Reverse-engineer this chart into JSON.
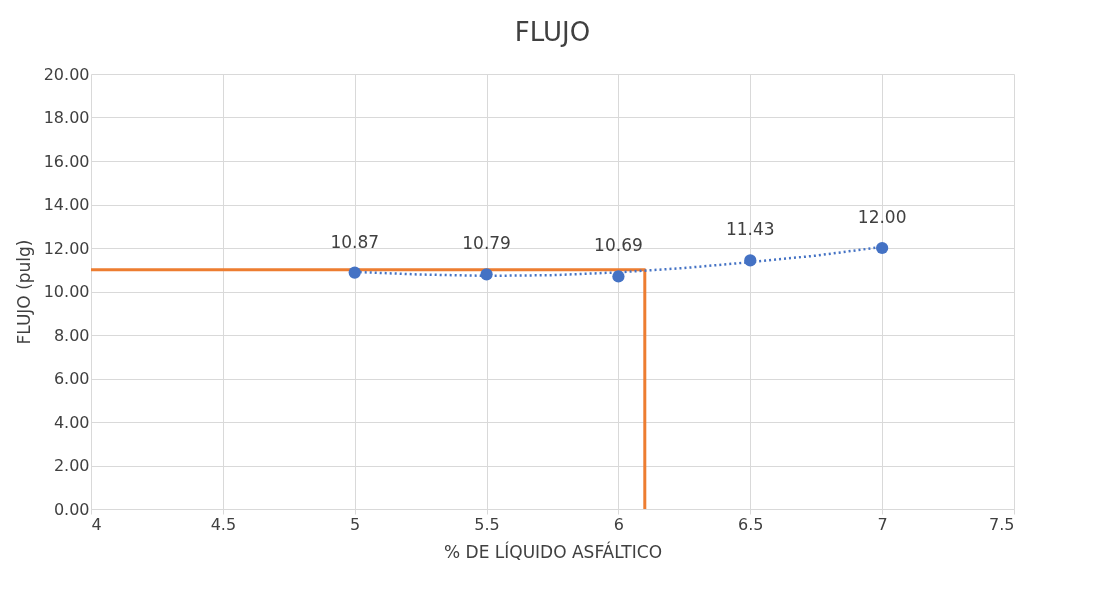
{
  "chart_data": {
    "type": "scatter",
    "title": "FLUJO",
    "xlabel": "% DE LÍQUIDO ASFÁLTICO",
    "ylabel": "FLUJO (pulg)",
    "xlim": [
      4,
      7.5
    ],
    "xticks": [
      4,
      4.5,
      5,
      5.5,
      6,
      6.5,
      7,
      7.5
    ],
    "ylim": [
      0,
      20
    ],
    "yticks": [
      {
        "value": 0,
        "label": "0.00"
      },
      {
        "value": 2,
        "label": "2.00"
      },
      {
        "value": 4,
        "label": "4.00"
      },
      {
        "value": 6,
        "label": "6.00"
      },
      {
        "value": 8,
        "label": "8.00"
      },
      {
        "value": 10,
        "label": "10.00"
      },
      {
        "value": 12,
        "label": "12.00"
      },
      {
        "value": 14,
        "label": "14.00"
      },
      {
        "value": 16,
        "label": "16.00"
      },
      {
        "value": 18,
        "label": "18.00"
      },
      {
        "value": 20,
        "label": "20.00"
      }
    ],
    "grid": true,
    "marker": "circle",
    "series": [
      {
        "type": "line",
        "color": "#ed7d31",
        "line_style": "solid",
        "marker": "none",
        "x": [
          4,
          6.1,
          6.1
        ],
        "values": [
          11,
          11,
          0
        ]
      },
      {
        "type": "line",
        "color": "#4472c4",
        "line_style": "dotted",
        "marker": "none",
        "x": [
          5,
          5.25,
          5.5,
          5.75,
          6,
          6.25,
          6.5,
          6.75,
          7
        ],
        "values": [
          10.9,
          10.78,
          10.72,
          10.75,
          10.88,
          11.08,
          11.35,
          11.65,
          12.05
        ]
      },
      {
        "color": "#4472c4",
        "x": [
          5,
          5.5,
          6,
          6.5,
          7
        ],
        "values": [
          10.87,
          10.79,
          10.69,
          11.43,
          12.0
        ],
        "value_labels": [
          "10.87",
          "10.79",
          "10.69",
          "11.43",
          "12.00"
        ]
      }
    ]
  }
}
